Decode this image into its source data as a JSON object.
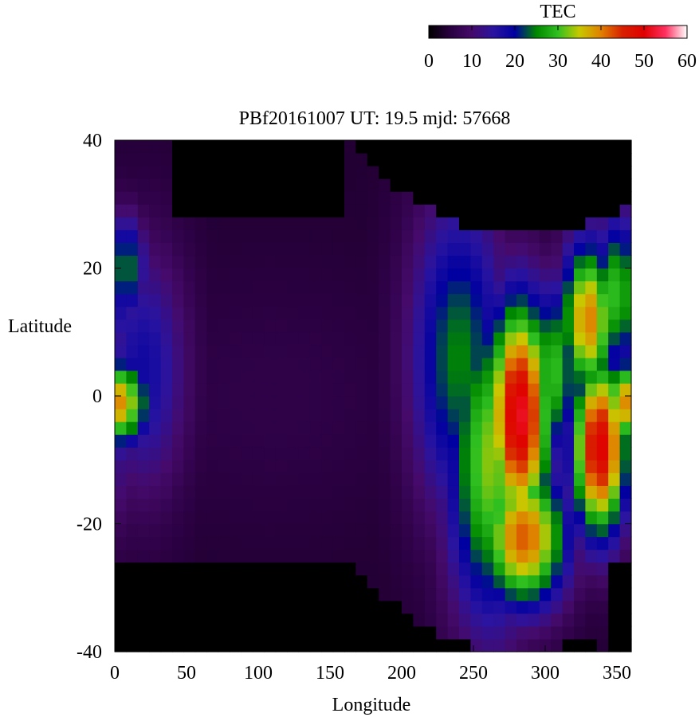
{
  "chart_data": {
    "type": "heatmap",
    "title": "PBf20161007  UT: 19.5  mjd: 57668",
    "xlabel": "Longitude",
    "ylabel": "Latitude",
    "xlim": [
      0,
      360
    ],
    "ylim": [
      -40,
      40
    ],
    "xticks": [
      "0",
      "50",
      "100",
      "150",
      "200",
      "250",
      "300",
      "350"
    ],
    "yticks": [
      "-40",
      "-20",
      "0",
      "20",
      "40"
    ],
    "cell_size": {
      "lon": 8,
      "lat": 2
    },
    "colorbar": {
      "label": "TEC",
      "range": [
        0,
        60
      ],
      "ticks": [
        "0",
        "10",
        "20",
        "30",
        "40",
        "50",
        "60"
      ],
      "stops": [
        {
          "v": 0,
          "color": "#000000"
        },
        {
          "v": 5,
          "color": "#2a0040"
        },
        {
          "v": 10,
          "color": "#450a6a"
        },
        {
          "v": 15,
          "color": "#2a14a0"
        },
        {
          "v": 20,
          "color": "#0000a0"
        },
        {
          "v": 25,
          "color": "#008800"
        },
        {
          "v": 30,
          "color": "#30c020"
        },
        {
          "v": 35,
          "color": "#c8c800"
        },
        {
          "v": 40,
          "color": "#e08000"
        },
        {
          "v": 45,
          "color": "#d82000"
        },
        {
          "v": 50,
          "color": "#e00000"
        },
        {
          "v": 55,
          "color": "#ff3060"
        },
        {
          "v": 60,
          "color": "#ffffff"
        }
      ]
    },
    "background_tec": 0,
    "night_tec": 4,
    "enhancements": [
      {
        "lon": 282,
        "lat": -3,
        "peak": 52,
        "lon_width": 16,
        "lat_width": 13
      },
      {
        "lon": 285,
        "lat": -22,
        "peak": 42,
        "lon_width": 22,
        "lat_width": 8
      },
      {
        "lon": 262,
        "lat": -10,
        "peak": 33,
        "lon_width": 22,
        "lat_width": 18
      },
      {
        "lon": 338,
        "lat": -8,
        "peak": 50,
        "lon_width": 14,
        "lat_width": 10
      },
      {
        "lon": 330,
        "lat": 12,
        "peak": 40,
        "lon_width": 14,
        "lat_width": 9
      },
      {
        "lon": 350,
        "lat": 16,
        "peak": 30,
        "lon_width": 12,
        "lat_width": 9
      },
      {
        "lon": 305,
        "lat": 4,
        "peak": 30,
        "lon_width": 14,
        "lat_width": 10
      },
      {
        "lon": 240,
        "lat": 6,
        "peak": 25,
        "lon_width": 24,
        "lat_width": 18
      },
      {
        "lon": 0,
        "lat": -1,
        "peak": 40,
        "lon_width": 18,
        "lat_width": 5
      },
      {
        "lon": 8,
        "lat": 20,
        "peak": 25,
        "lon_width": 10,
        "lat_width": 6
      },
      {
        "lon": 20,
        "lat": 4,
        "peak": 18,
        "lon_width": 22,
        "lat_width": 14
      },
      {
        "lon": 110,
        "lat": 0,
        "peak": 6,
        "lon_width": 70,
        "lat_width": 14
      }
    ],
    "dark_regions": [
      {
        "lon_from": 40,
        "lon_to": 160,
        "lat_above": 28
      },
      {
        "lon_from": 160,
        "lon_to": 360,
        "lat_above_curve": "bowl",
        "center_lon": 285,
        "min_lat": 25,
        "edge_lat": 40
      },
      {
        "lon_from": 0,
        "lon_to": 165,
        "lat_below": -26
      },
      {
        "lon_from": 165,
        "lon_to": 340,
        "lat_below_curve": "bowl",
        "center_lon": 280,
        "min_lat": -40,
        "edge_lat": -26
      },
      {
        "lon_from": 345,
        "lon_to": 360,
        "lat_below": -27
      }
    ]
  }
}
